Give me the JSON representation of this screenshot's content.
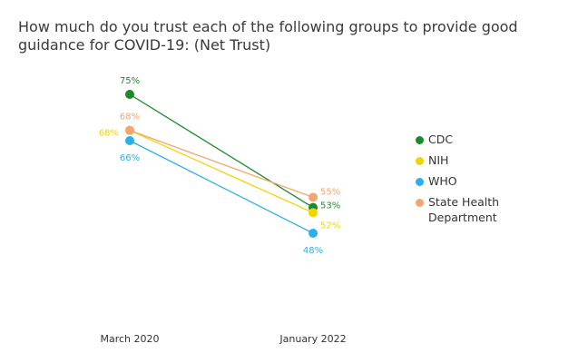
{
  "chart_data": {
    "type": "slope",
    "title": "How much do you trust each of the following groups to provide good guidance for COVID-19: (Net Trust)",
    "categories": [
      "March 2020",
      "January 2022"
    ],
    "series": [
      {
        "name": "CDC",
        "color": "#1a8a2a",
        "values": [
          75,
          53
        ],
        "value_labels": [
          "75%",
          "53%"
        ]
      },
      {
        "name": "NIH",
        "color": "#f2d500",
        "values": [
          68,
          52
        ],
        "value_labels": [
          "68%",
          "52%"
        ]
      },
      {
        "name": "WHO",
        "color": "#2bb0ea",
        "values": [
          66,
          48
        ],
        "value_labels": [
          "66%",
          "48%"
        ]
      },
      {
        "name": "State Health Department",
        "color": "#f5a56d",
        "values": [
          68,
          55
        ],
        "value_labels": [
          "68%",
          "55%"
        ]
      }
    ]
  }
}
